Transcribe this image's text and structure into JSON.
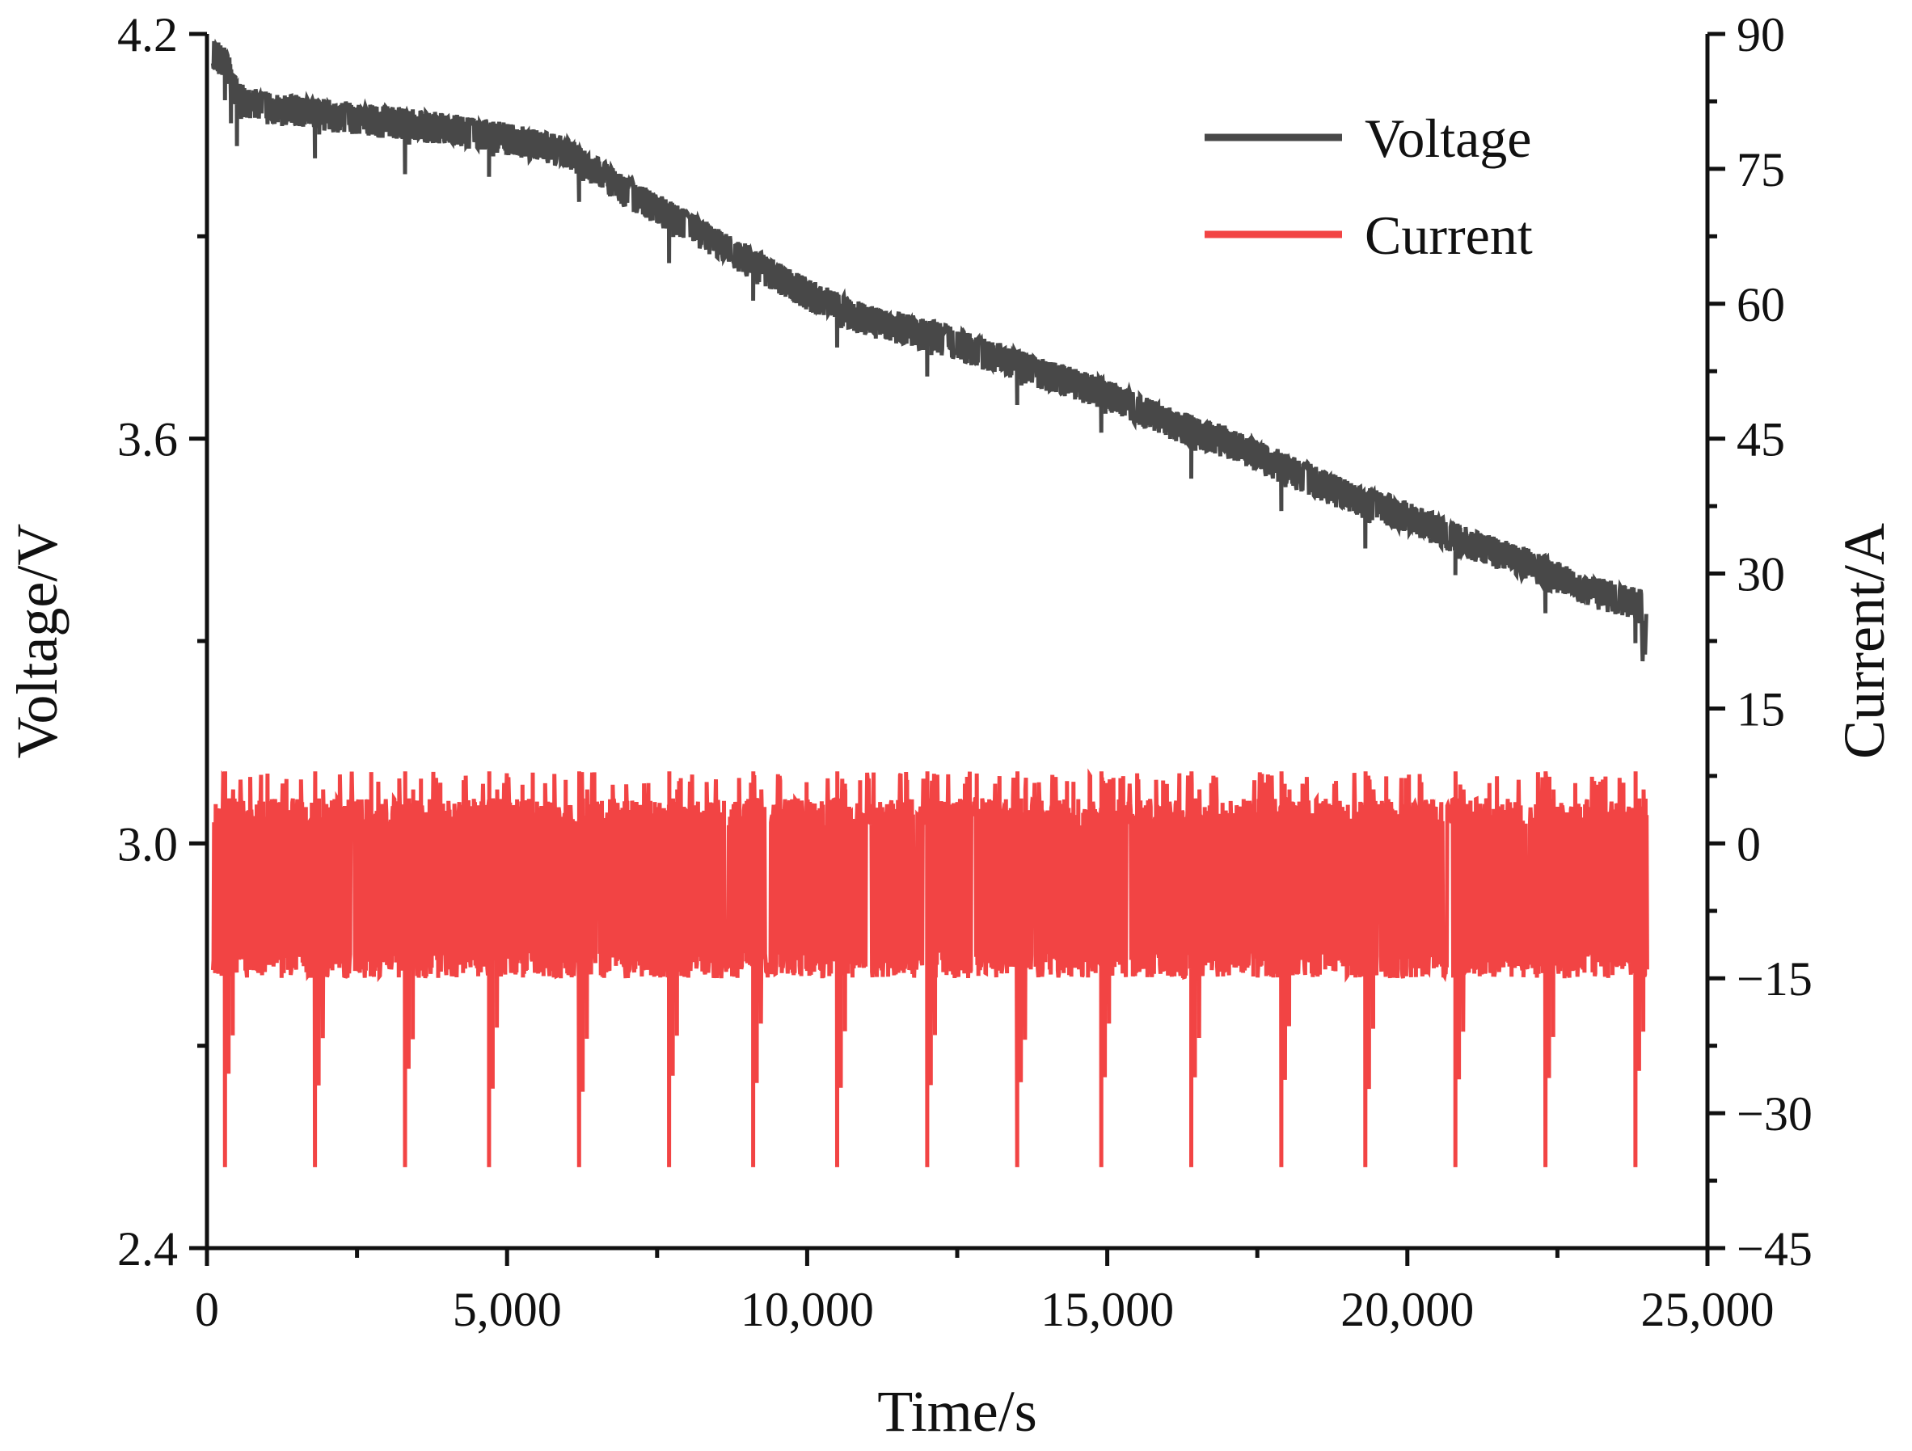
{
  "chart_data": {
    "type": "line",
    "title": "",
    "xlabel": "Time/s",
    "ylabel_left": "Voltage/V",
    "ylabel_right": "Current/A",
    "xlim": [
      0,
      25000
    ],
    "ylim_left": [
      2.4,
      4.2
    ],
    "ylim_right": [
      -45,
      90
    ],
    "x_ticks": [
      0,
      5000,
      10000,
      15000,
      20000,
      25000
    ],
    "x_tick_labels": [
      "0",
      "5,000",
      "10,000",
      "15,000",
      "20,000",
      "25,000"
    ],
    "y_left_ticks": [
      2.4,
      3.0,
      3.6,
      4.2
    ],
    "y_left_tick_labels": [
      "2.4",
      "3.0",
      "3.6",
      "4.2"
    ],
    "y_right_ticks": [
      -45,
      -30,
      -15,
      0,
      15,
      30,
      45,
      60,
      75,
      90
    ],
    "y_right_tick_labels": [
      "−45",
      "−30",
      "−15",
      "0",
      "15",
      "30",
      "45",
      "60",
      "75",
      "90"
    ],
    "grid": false,
    "legend_position": "top-right",
    "series": [
      {
        "name": "Voltage",
        "axis": "left",
        "color": "#484848",
        "trend": {
          "x": [
            100,
            300,
            500,
            1000,
            2000,
            3000,
            4000,
            5000,
            6000,
            7000,
            8000,
            9000,
            10000,
            11000,
            12000,
            13000,
            14000,
            15000,
            16000,
            17000,
            18000,
            19000,
            20000,
            21000,
            22000,
            23000,
            23900
          ],
          "y": [
            4.175,
            4.165,
            4.11,
            4.095,
            4.085,
            4.075,
            4.065,
            4.05,
            4.03,
            3.97,
            3.92,
            3.87,
            3.82,
            3.78,
            3.76,
            3.73,
            3.7,
            3.67,
            3.63,
            3.6,
            3.56,
            3.52,
            3.49,
            3.45,
            3.42,
            3.38,
            3.36
          ]
        },
        "oscillation_amplitude_V": 0.03,
        "dip_times": [
          300,
          400,
          500,
          1800,
          3300,
          4700,
          6200,
          7700,
          9100,
          10500,
          12000,
          13500,
          14900,
          16400,
          17900,
          19300,
          20800,
          22300,
          23800
        ],
        "dip_depth_V": 0.06,
        "end_value": 3.27
      },
      {
        "name": "Current",
        "axis": "right",
        "color": "#f24444",
        "baseline_A": -5,
        "typical_range_A": [
          -15,
          5
        ],
        "max_A": 8,
        "min_A": -36,
        "spike_times": [
          300,
          1800,
          3300,
          4700,
          6200,
          7700,
          9100,
          10500,
          12000,
          13500,
          14900,
          16400,
          17900,
          19300,
          20800,
          22300,
          23800
        ],
        "start_x": 100,
        "end_x": 24000
      }
    ]
  }
}
